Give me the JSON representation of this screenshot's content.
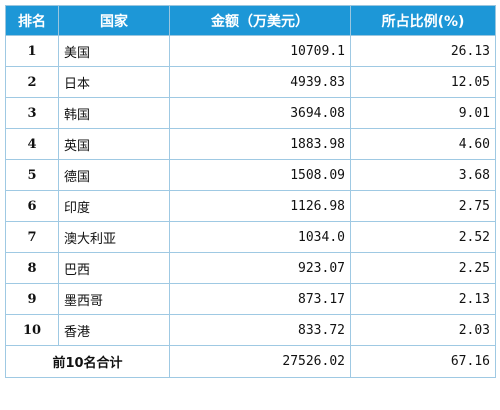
{
  "table": {
    "headers": [
      "排名",
      "国家",
      "金额（万美元）",
      "所占比例(%)"
    ],
    "rows": [
      {
        "rank": "1",
        "country": "美国",
        "amount": "10709.1",
        "share": "26.13"
      },
      {
        "rank": "2",
        "country": "日本",
        "amount": "4939.83",
        "share": "12.05"
      },
      {
        "rank": "3",
        "country": "韩国",
        "amount": "3694.08",
        "share": "9.01"
      },
      {
        "rank": "4",
        "country": "英国",
        "amount": "1883.98",
        "share": "4.60"
      },
      {
        "rank": "5",
        "country": "德国",
        "amount": "1508.09",
        "share": "3.68"
      },
      {
        "rank": "6",
        "country": "印度",
        "amount": "1126.98",
        "share": "2.75"
      },
      {
        "rank": "7",
        "country": "澳大利亚",
        "amount": "1034.0",
        "share": "2.52"
      },
      {
        "rank": "8",
        "country": "巴西",
        "amount": "923.07",
        "share": "2.25"
      },
      {
        "rank": "9",
        "country": "墨西哥",
        "amount": "873.17",
        "share": "2.13"
      },
      {
        "rank": "10",
        "country": "香港",
        "amount": "833.72",
        "share": "2.03"
      }
    ],
    "total": {
      "label": "前10名合计",
      "amount": "27526.02",
      "share": "67.16"
    }
  },
  "colors": {
    "header_bg": "#1d97d7",
    "header_text": "#ffffff",
    "border": "#9fc9e3"
  }
}
